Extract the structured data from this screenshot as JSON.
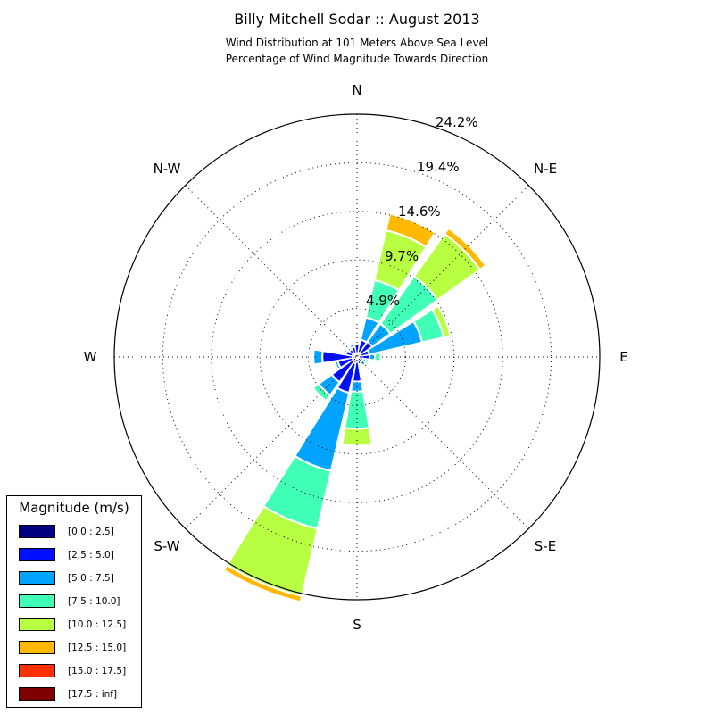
{
  "header": {
    "title": "Billy Mitchell Sodar :: August 2013",
    "subtitle_line1": "Wind Distribution at 101 Meters Above Sea Level",
    "subtitle_line2": "Percentage of Wind Magnitude Towards Direction"
  },
  "directions": {
    "n": "N",
    "ne": "N-E",
    "e": "E",
    "se": "S-E",
    "s": "S",
    "sw": "S-W",
    "w": "W",
    "nw": "N-W"
  },
  "rings": {
    "r1": "4.9%",
    "r2": "9.7%",
    "r3": "14.6%",
    "r4": "19.4%",
    "r5": "24.2%"
  },
  "legend": {
    "title": "Magnitude (m/s)",
    "items": [
      {
        "label": "[0.0 : 2.5]",
        "color": "#000080"
      },
      {
        "label": "[2.5 : 5.0]",
        "color": "#0010ff"
      },
      {
        "label": "[5.0 : 7.5]",
        "color": "#00a4ff"
      },
      {
        "label": "[7.5 : 10.0]",
        "color": "#40ffb7"
      },
      {
        "label": "[10.0 : 12.5]",
        "color": "#b7ff40"
      },
      {
        "label": "[12.5 : 15.0]",
        "color": "#ffb900"
      },
      {
        "label": "[15.0 : 17.5]",
        "color": "#ff3000"
      },
      {
        "label": "[17.5 : inf]",
        "color": "#800000"
      }
    ]
  },
  "chart_data": {
    "type": "windrose",
    "rmax": 24.2,
    "ring_values": [
      4.9,
      9.7,
      14.6,
      19.4,
      24.2
    ],
    "bins": [
      "[0.0 : 2.5]",
      "[2.5 : 5.0]",
      "[5.0 : 7.5]",
      "[7.5 : 10.0]",
      "[10.0 : 12.5]",
      "[12.5 : 15.0]",
      "[15.0 : 17.5]",
      "[17.5 : inf]"
    ],
    "sectors": [
      {
        "direction_deg": 0,
        "cumulative": [
          0.3,
          1.2,
          1.2,
          1.2,
          1.2,
          1.2,
          1.2,
          1.2
        ]
      },
      {
        "direction_deg": 22.5,
        "cumulative": [
          0.4,
          1.7,
          4.0,
          7.8,
          12.9,
          14.6,
          14.6,
          14.6
        ]
      },
      {
        "direction_deg": 45,
        "cumulative": [
          0.4,
          1.8,
          4.0,
          9.8,
          15.0,
          15.7,
          15.7,
          15.7
        ]
      },
      {
        "direction_deg": 67.5,
        "cumulative": [
          0.3,
          1.2,
          6.6,
          8.8,
          9.5,
          9.5,
          9.5,
          9.5
        ]
      },
      {
        "direction_deg": 90,
        "cumulative": [
          0.2,
          1.2,
          1.7,
          2.3,
          2.3,
          2.3,
          2.3,
          2.3
        ]
      },
      {
        "direction_deg": 112.5,
        "cumulative": [
          0.2,
          0.6,
          0.9,
          1.2,
          1.2,
          1.2,
          1.2,
          1.2
        ]
      },
      {
        "direction_deg": 135,
        "cumulative": [
          0.2,
          0.6,
          1.0,
          1.1,
          1.1,
          1.1,
          1.1,
          1.1
        ]
      },
      {
        "direction_deg": 157.5,
        "cumulative": [
          0.2,
          0.7,
          0.9,
          0.9,
          0.9,
          0.9,
          0.9,
          0.9
        ]
      },
      {
        "direction_deg": 180,
        "cumulative": [
          0.4,
          2.4,
          3.4,
          7.1,
          8.8,
          8.8,
          8.8,
          8.8
        ]
      },
      {
        "direction_deg": 202.5,
        "cumulative": [
          0.6,
          3.6,
          11.6,
          17.5,
          24.4,
          25.0,
          25.0,
          25.0
        ]
      },
      {
        "direction_deg": 225,
        "cumulative": [
          0.5,
          3.0,
          4.6,
          5.3,
          5.3,
          5.3,
          5.3,
          5.3
        ]
      },
      {
        "direction_deg": 247.5,
        "cumulative": [
          0.4,
          1.9,
          2.2,
          2.2,
          2.2,
          2.2,
          2.2,
          2.2
        ]
      },
      {
        "direction_deg": 270,
        "cumulative": [
          0.4,
          3.4,
          4.3,
          4.3,
          4.3,
          4.3,
          4.3,
          4.3
        ]
      },
      {
        "direction_deg": 292.5,
        "cumulative": [
          0.4,
          1.1,
          1.4,
          1.4,
          1.4,
          1.4,
          1.4,
          1.4
        ]
      },
      {
        "direction_deg": 315,
        "cumulative": [
          0.3,
          0.9,
          0.9,
          0.9,
          0.9,
          0.9,
          0.9,
          0.9
        ]
      },
      {
        "direction_deg": 337.5,
        "cumulative": [
          0.3,
          1.0,
          1.3,
          1.3,
          1.3,
          1.3,
          1.3,
          1.3
        ]
      }
    ]
  }
}
